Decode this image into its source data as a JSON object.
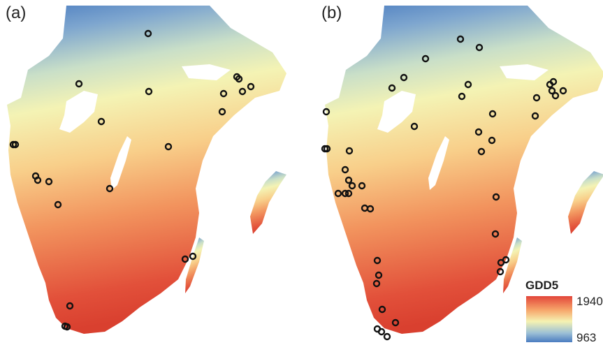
{
  "panels": [
    {
      "label": "(a)"
    },
    {
      "label": "(b)"
    }
  ],
  "legend": {
    "title": "GDD5",
    "max": "1940",
    "min": "963"
  }
}
